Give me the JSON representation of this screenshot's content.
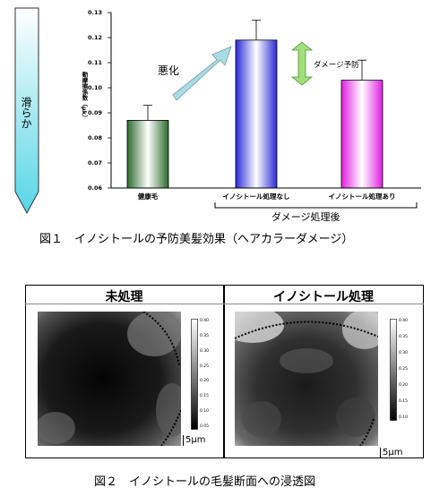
{
  "fig1": {
    "caption": "図１　イノシトールの予防美髪効果（ヘアカラーダメージ）",
    "smooth_label": "滑らか",
    "arrow_label": "悪化",
    "damage_prevention_label": "ダメージ予防",
    "group_label": "ダメージ処理後",
    "colors": {
      "bar1": "#2e6b2e",
      "bar2": "#2a2ad8",
      "bar3": "#e020e0",
      "smooth_arrow": "#7fe0ec",
      "arrow": "#a8dde6",
      "double_arrow": "#9fe07a"
    },
    "chart_data": {
      "type": "bar",
      "categories": [
        "健康毛",
        "イノシトール処理なし",
        "イノシトール処理あり"
      ],
      "values": [
        0.087,
        0.119,
        0.103
      ],
      "errors": [
        0.006,
        0.008,
        0.008
      ],
      "ylabel": "動摩擦係数（μk）",
      "ylim": [
        0.06,
        0.13
      ],
      "yticks": [
        "0.13",
        "0.12",
        "0.11",
        "0.10",
        "0.09",
        "0.08",
        "0.07",
        "0.06"
      ],
      "grid": false
    }
  },
  "fig2": {
    "caption": "図２　イノシトールの毛髪断面への浸透図",
    "panels": [
      {
        "title": "未処理",
        "scale_label": "5μm",
        "colorbar_ticks": [
          "0.40",
          "0.35",
          "0.30",
          "0.25",
          "0.20",
          "0.15",
          "0.10",
          "0.05"
        ]
      },
      {
        "title": "イノシトール処理",
        "scale_label": "5μm",
        "colorbar_ticks": [
          "0.40",
          "0.35",
          "0.30",
          "0.25",
          "0.20",
          "0.15",
          "0.10"
        ]
      }
    ]
  }
}
